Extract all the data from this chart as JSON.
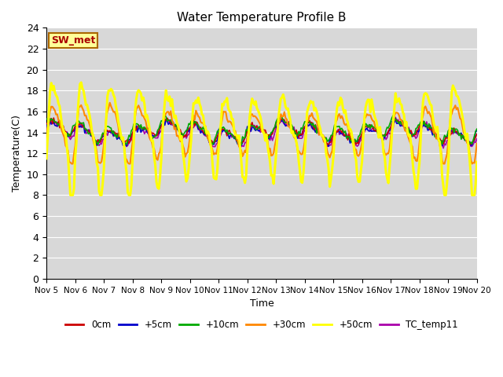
{
  "title": "Water Temperature Profile B",
  "xlabel": "Time",
  "ylabel": "Temperature(C)",
  "ylim": [
    0,
    24
  ],
  "yticks": [
    0,
    2,
    4,
    6,
    8,
    10,
    12,
    14,
    16,
    18,
    20,
    22,
    24
  ],
  "xtick_labels": [
    "Nov 5",
    "Nov 6",
    "Nov 7",
    "Nov 8",
    "Nov 9",
    "Nov 10",
    "Nov 11",
    "Nov 12",
    "Nov 13",
    "Nov 14",
    "Nov 15",
    "Nov 16",
    "Nov 17",
    "Nov 18",
    "Nov 19",
    "Nov 20"
  ],
  "background_color": "#d8d8d8",
  "series": {
    "0cm": {
      "color": "#cc0000",
      "lw": 1.2
    },
    "+5cm": {
      "color": "#0000cc",
      "lw": 1.2
    },
    "+10cm": {
      "color": "#00aa00",
      "lw": 1.2
    },
    "+30cm": {
      "color": "#ff8800",
      "lw": 1.5
    },
    "+50cm": {
      "color": "#ffff00",
      "lw": 2.2
    },
    "TC_temp11": {
      "color": "#aa00aa",
      "lw": 1.2
    }
  },
  "annotation_text": "SW_met",
  "annotation_color": "#aa0000",
  "annotation_bg": "#ffff99",
  "annotation_border": "#aa6600",
  "figsize": [
    6.4,
    4.8
  ],
  "dpi": 100
}
